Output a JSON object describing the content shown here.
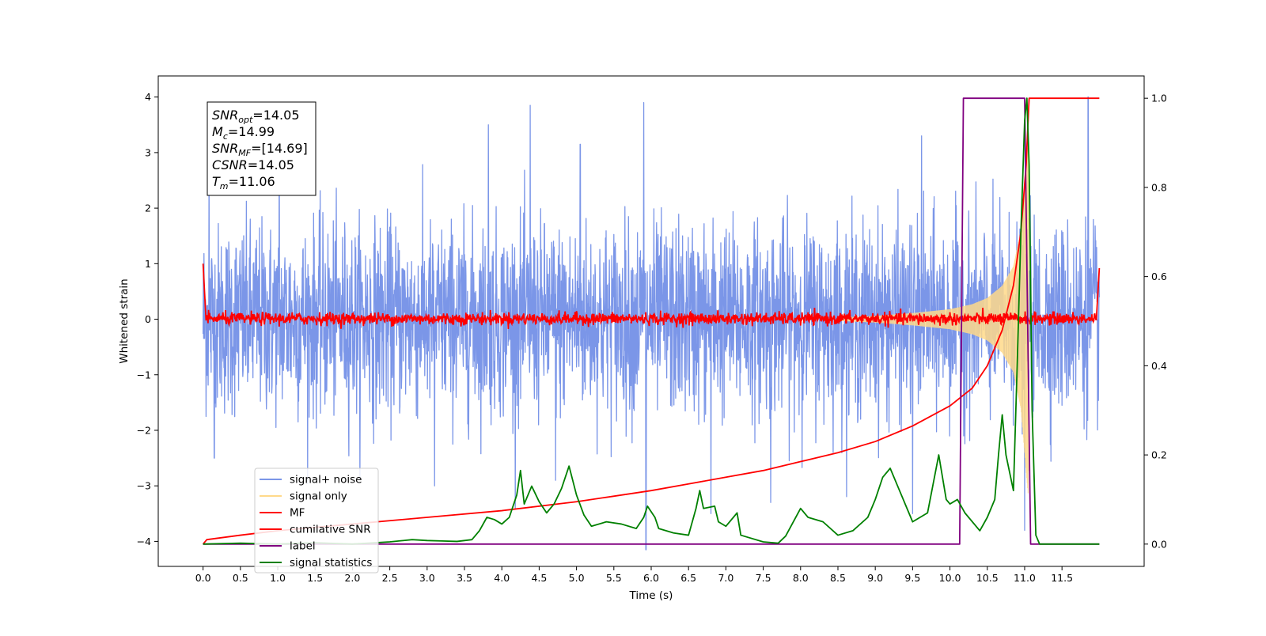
{
  "chart_data": {
    "type": "line",
    "xlabel": "Time (s)",
    "ylabel": "Whitened strain",
    "xlim": [
      -0.6,
      12.6
    ],
    "ylim": [
      -4.45,
      4.38
    ],
    "y2lim": [
      -0.05,
      1.05
    ],
    "x_ticks": [
      0.0,
      0.5,
      1.0,
      1.5,
      2.0,
      2.5,
      3.0,
      3.5,
      4.0,
      4.5,
      5.0,
      5.5,
      6.0,
      6.5,
      7.0,
      7.5,
      8.0,
      8.5,
      9.0,
      9.5,
      10.0,
      10.5,
      11.0,
      11.5
    ],
    "x_tick_labels": [
      "0.0",
      "0.5",
      "1.0",
      "1.5",
      "2.0",
      "2.5",
      "3.0",
      "3.5",
      "4.0",
      "4.5",
      "5.0",
      "5.5",
      "6.0",
      "6.5",
      "7.0",
      "7.5",
      "8.0",
      "8.5",
      "9.0",
      "9.5",
      "10.0",
      "10.5",
      "11.0",
      "11.5"
    ],
    "y_ticks": [
      -4,
      -3,
      -2,
      -1,
      0,
      1,
      2,
      3,
      4
    ],
    "y_tick_labels": [
      "−4",
      "−3",
      "−2",
      "−1",
      "0",
      "1",
      "2",
      "3",
      "4"
    ],
    "y2_ticks": [
      0.0,
      0.2,
      0.4,
      0.6,
      0.8,
      1.0
    ],
    "y2_tick_labels": [
      "0.0",
      "0.2",
      "0.4",
      "0.6",
      "0.8",
      "1.0"
    ],
    "grid": false,
    "legend_position": "lower-left",
    "annotation_lines": [
      {
        "sym": "SNR",
        "sub": "opt",
        "rest": "=14.05"
      },
      {
        "sym": "M",
        "sub": "c",
        "rest": "=14.99"
      },
      {
        "sym": "SNR",
        "sub": "MF",
        "rest": "=[14.69]"
      },
      {
        "sym": "CSNR",
        "sub": "",
        "rest": "=14.05"
      },
      {
        "sym": "T",
        "sub": "m",
        "rest": "=11.06"
      }
    ],
    "series": [
      {
        "name": "signal+ noise",
        "color": "#7b96e8",
        "axis": "left",
        "kind": "noise",
        "x_range": [
          0.0,
          12.0
        ],
        "std": 0.85,
        "spikes": [
          [
            0.08,
            2.9
          ],
          [
            0.15,
            -2.5
          ],
          [
            1.02,
            3.6
          ],
          [
            3.1,
            -3.0
          ],
          [
            3.82,
            3.5
          ],
          [
            4.38,
            3.85
          ],
          [
            4.72,
            -2.9
          ],
          [
            5.05,
            3.15
          ],
          [
            5.9,
            3.9
          ],
          [
            5.93,
            -4.15
          ],
          [
            6.8,
            -3.5
          ],
          [
            7.6,
            -3.3
          ],
          [
            9.5,
            -3.5
          ],
          [
            9.62,
            3.3
          ],
          [
            11.0,
            -3.8
          ],
          [
            11.85,
            4.0
          ]
        ]
      },
      {
        "name": "signal only",
        "color": "#ffd98a",
        "axis": "left",
        "kind": "chirp",
        "t_merge": 11.06,
        "envelope": [
          [
            8.5,
            0.03
          ],
          [
            9.0,
            0.06
          ],
          [
            9.5,
            0.11
          ],
          [
            10.0,
            0.18
          ],
          [
            10.3,
            0.27
          ],
          [
            10.5,
            0.38
          ],
          [
            10.7,
            0.6
          ],
          [
            10.85,
            0.95
          ],
          [
            10.95,
            1.6
          ],
          [
            11.0,
            2.4
          ],
          [
            11.05,
            3.2
          ],
          [
            11.06,
            0.0
          ]
        ]
      },
      {
        "name": "MF",
        "color": "#ff0000",
        "axis": "left",
        "kind": "mf",
        "x_range": [
          0.0,
          12.0
        ],
        "points": [
          [
            0.0,
            1.0
          ],
          [
            0.04,
            -0.02
          ],
          [
            11.96,
            0.0
          ],
          [
            12.0,
            0.92
          ]
        ]
      },
      {
        "name": "cumilative SNR",
        "color": "#ff0000",
        "axis": "right",
        "kind": "curve",
        "points": [
          [
            0.0,
            0.0
          ],
          [
            0.05,
            0.01
          ],
          [
            0.5,
            0.02
          ],
          [
            1.0,
            0.03
          ],
          [
            2.0,
            0.045
          ],
          [
            3.0,
            0.06
          ],
          [
            4.0,
            0.075
          ],
          [
            5.0,
            0.095
          ],
          [
            6.0,
            0.12
          ],
          [
            6.5,
            0.135
          ],
          [
            7.0,
            0.15
          ],
          [
            7.5,
            0.165
          ],
          [
            8.0,
            0.185
          ],
          [
            8.5,
            0.205
          ],
          [
            9.0,
            0.23
          ],
          [
            9.5,
            0.265
          ],
          [
            10.0,
            0.31
          ],
          [
            10.3,
            0.35
          ],
          [
            10.5,
            0.4
          ],
          [
            10.7,
            0.48
          ],
          [
            10.85,
            0.58
          ],
          [
            10.95,
            0.7
          ],
          [
            11.02,
            0.85
          ],
          [
            11.06,
            1.0
          ],
          [
            12.0,
            1.0
          ]
        ]
      },
      {
        "name": "label",
        "color": "#800080",
        "axis": "right",
        "kind": "curve",
        "points": [
          [
            0.0,
            0.0
          ],
          [
            10.13,
            0.0
          ],
          [
            10.18,
            1.0
          ],
          [
            11.0,
            1.0
          ],
          [
            11.08,
            0.0
          ],
          [
            12.0,
            0.0
          ]
        ]
      },
      {
        "name": "signal statistics",
        "color": "#008000",
        "axis": "right",
        "kind": "curve",
        "points": [
          [
            0.0,
            0.0
          ],
          [
            0.5,
            0.002
          ],
          [
            1.0,
            0.0
          ],
          [
            1.5,
            0.003
          ],
          [
            2.0,
            0.0
          ],
          [
            2.5,
            0.005
          ],
          [
            2.8,
            0.01
          ],
          [
            3.0,
            0.008
          ],
          [
            3.2,
            0.007
          ],
          [
            3.4,
            0.006
          ],
          [
            3.5,
            0.008
          ],
          [
            3.6,
            0.01
          ],
          [
            3.7,
            0.03
          ],
          [
            3.8,
            0.06
          ],
          [
            3.9,
            0.055
          ],
          [
            4.0,
            0.045
          ],
          [
            4.1,
            0.06
          ],
          [
            4.2,
            0.11
          ],
          [
            4.25,
            0.165
          ],
          [
            4.3,
            0.09
          ],
          [
            4.4,
            0.13
          ],
          [
            4.5,
            0.095
          ],
          [
            4.6,
            0.07
          ],
          [
            4.7,
            0.09
          ],
          [
            4.8,
            0.125
          ],
          [
            4.9,
            0.175
          ],
          [
            5.0,
            0.11
          ],
          [
            5.1,
            0.065
          ],
          [
            5.2,
            0.04
          ],
          [
            5.4,
            0.05
          ],
          [
            5.6,
            0.045
          ],
          [
            5.8,
            0.035
          ],
          [
            5.9,
            0.06
          ],
          [
            5.95,
            0.085
          ],
          [
            6.05,
            0.06
          ],
          [
            6.1,
            0.035
          ],
          [
            6.3,
            0.025
          ],
          [
            6.5,
            0.02
          ],
          [
            6.6,
            0.08
          ],
          [
            6.65,
            0.12
          ],
          [
            6.7,
            0.08
          ],
          [
            6.85,
            0.085
          ],
          [
            6.9,
            0.05
          ],
          [
            7.0,
            0.04
          ],
          [
            7.15,
            0.07
          ],
          [
            7.2,
            0.02
          ],
          [
            7.5,
            0.005
          ],
          [
            7.7,
            0.002
          ],
          [
            7.8,
            0.018
          ],
          [
            8.0,
            0.08
          ],
          [
            8.1,
            0.06
          ],
          [
            8.3,
            0.05
          ],
          [
            8.5,
            0.02
          ],
          [
            8.7,
            0.03
          ],
          [
            8.9,
            0.06
          ],
          [
            9.0,
            0.1
          ],
          [
            9.1,
            0.15
          ],
          [
            9.2,
            0.17
          ],
          [
            9.3,
            0.13
          ],
          [
            9.4,
            0.09
          ],
          [
            9.5,
            0.05
          ],
          [
            9.7,
            0.07
          ],
          [
            9.85,
            0.2
          ],
          [
            9.95,
            0.1
          ],
          [
            10.0,
            0.09
          ],
          [
            10.1,
            0.1
          ],
          [
            10.2,
            0.07
          ],
          [
            10.4,
            0.03
          ],
          [
            10.5,
            0.06
          ],
          [
            10.6,
            0.1
          ],
          [
            10.65,
            0.2
          ],
          [
            10.7,
            0.29
          ],
          [
            10.75,
            0.2
          ],
          [
            10.8,
            0.16
          ],
          [
            10.85,
            0.12
          ],
          [
            10.9,
            0.4
          ],
          [
            10.95,
            0.7
          ],
          [
            11.0,
            0.95
          ],
          [
            11.03,
            1.0
          ],
          [
            11.06,
            0.85
          ],
          [
            11.1,
            0.3
          ],
          [
            11.15,
            0.02
          ],
          [
            11.2,
            0.0
          ],
          [
            12.0,
            0.0
          ]
        ]
      }
    ]
  }
}
